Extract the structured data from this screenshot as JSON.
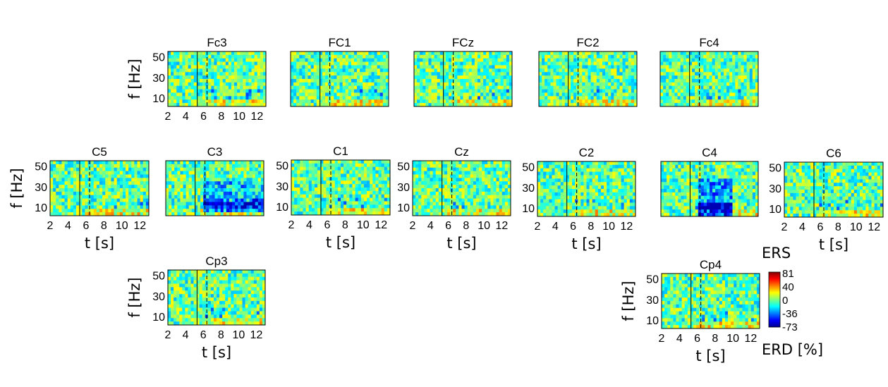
{
  "chart_data": {
    "type": "heatmap",
    "xlabel": "t [s]",
    "ylabel": "f [Hz]",
    "xticks": [
      2,
      4,
      6,
      8,
      10,
      12
    ],
    "yticks": [
      10,
      30,
      50
    ],
    "xlim": [
      2,
      13
    ],
    "ylim": [
      2,
      55
    ],
    "reference_lines_t": [
      5.3,
      6.4
    ],
    "colorscale": "jet",
    "colorbar": {
      "top_label": "ERS",
      "bottom_label": "ERD  [%]",
      "ticks": [
        "81",
        "40",
        "0",
        "-36",
        "-73"
      ],
      "range": [
        -73,
        81
      ]
    },
    "panels": [
      {
        "name": "Fc3"
      },
      {
        "name": "FC1"
      },
      {
        "name": "FCz"
      },
      {
        "name": "FC2"
      },
      {
        "name": "Fc4"
      },
      {
        "name": "C5"
      },
      {
        "name": "C3"
      },
      {
        "name": "C1"
      },
      {
        "name": "Cz"
      },
      {
        "name": "C2"
      },
      {
        "name": "C4"
      },
      {
        "name": "C6"
      },
      {
        "name": "Cp3"
      },
      {
        "name": "Cp4"
      }
    ]
  }
}
